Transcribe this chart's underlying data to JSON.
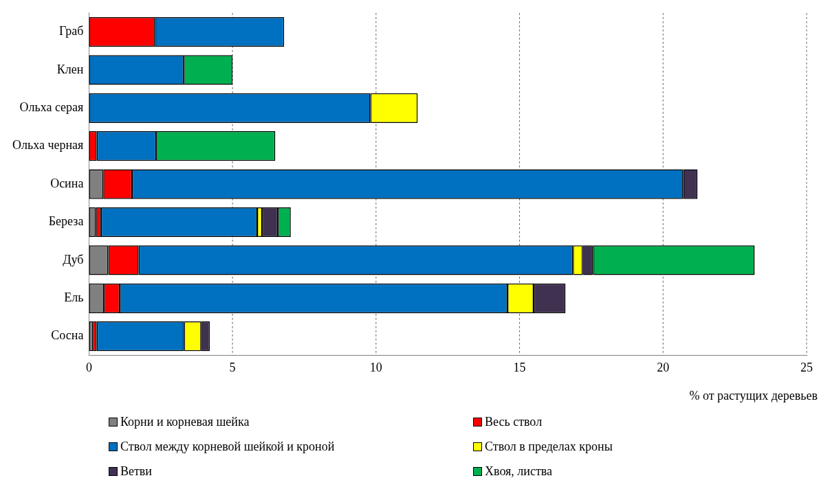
{
  "chart_data": {
    "type": "bar",
    "orientation": "horizontal",
    "stacked": true,
    "xlabel": "% от растущих деревьев",
    "categories": [
      "Граб",
      "Клен",
      "Ольха серая",
      "Ольха черная",
      "Осина",
      "Береза",
      "Дуб",
      "Ель",
      "Сосна"
    ],
    "series": [
      {
        "name": "Корни и корневая шейка",
        "color": "#808080",
        "values": [
          null,
          null,
          null,
          null,
          0.5,
          0.24,
          0.67,
          0.52,
          0.14
        ]
      },
      {
        "name": "Весь ствол",
        "color": "#ff0000",
        "values": [
          2.3,
          null,
          null,
          0.27,
          1.0,
          0.18,
          1.06,
          0.55,
          0.13
        ]
      },
      {
        "name": "Ствол между корневой шейкой и кроной",
        "color": "#0070c0",
        "values": [
          4.5,
          3.3,
          9.8,
          2.07,
          19.2,
          5.44,
          15.13,
          13.51,
          3.04
        ]
      },
      {
        "name": "Ствол в пределах кроны",
        "color": "#ffff00",
        "values": [
          null,
          null,
          1.65,
          null,
          null,
          0.17,
          0.34,
          0.91,
          0.6
        ]
      },
      {
        "name": "Ветви",
        "color": "#403151",
        "values": [
          null,
          null,
          null,
          null,
          0.5,
          0.55,
          0.36,
          1.11,
          0.3
        ]
      },
      {
        "name": "Хвоя, листва",
        "color": "#00b050",
        "values": [
          null,
          1.7,
          null,
          4.15,
          null,
          0.45,
          5.63,
          null,
          null
        ]
      }
    ],
    "xlim": [
      0,
      25
    ],
    "xticks": [
      0,
      5,
      10,
      15,
      20,
      25
    ],
    "grid": "x",
    "legend": "bottom"
  }
}
